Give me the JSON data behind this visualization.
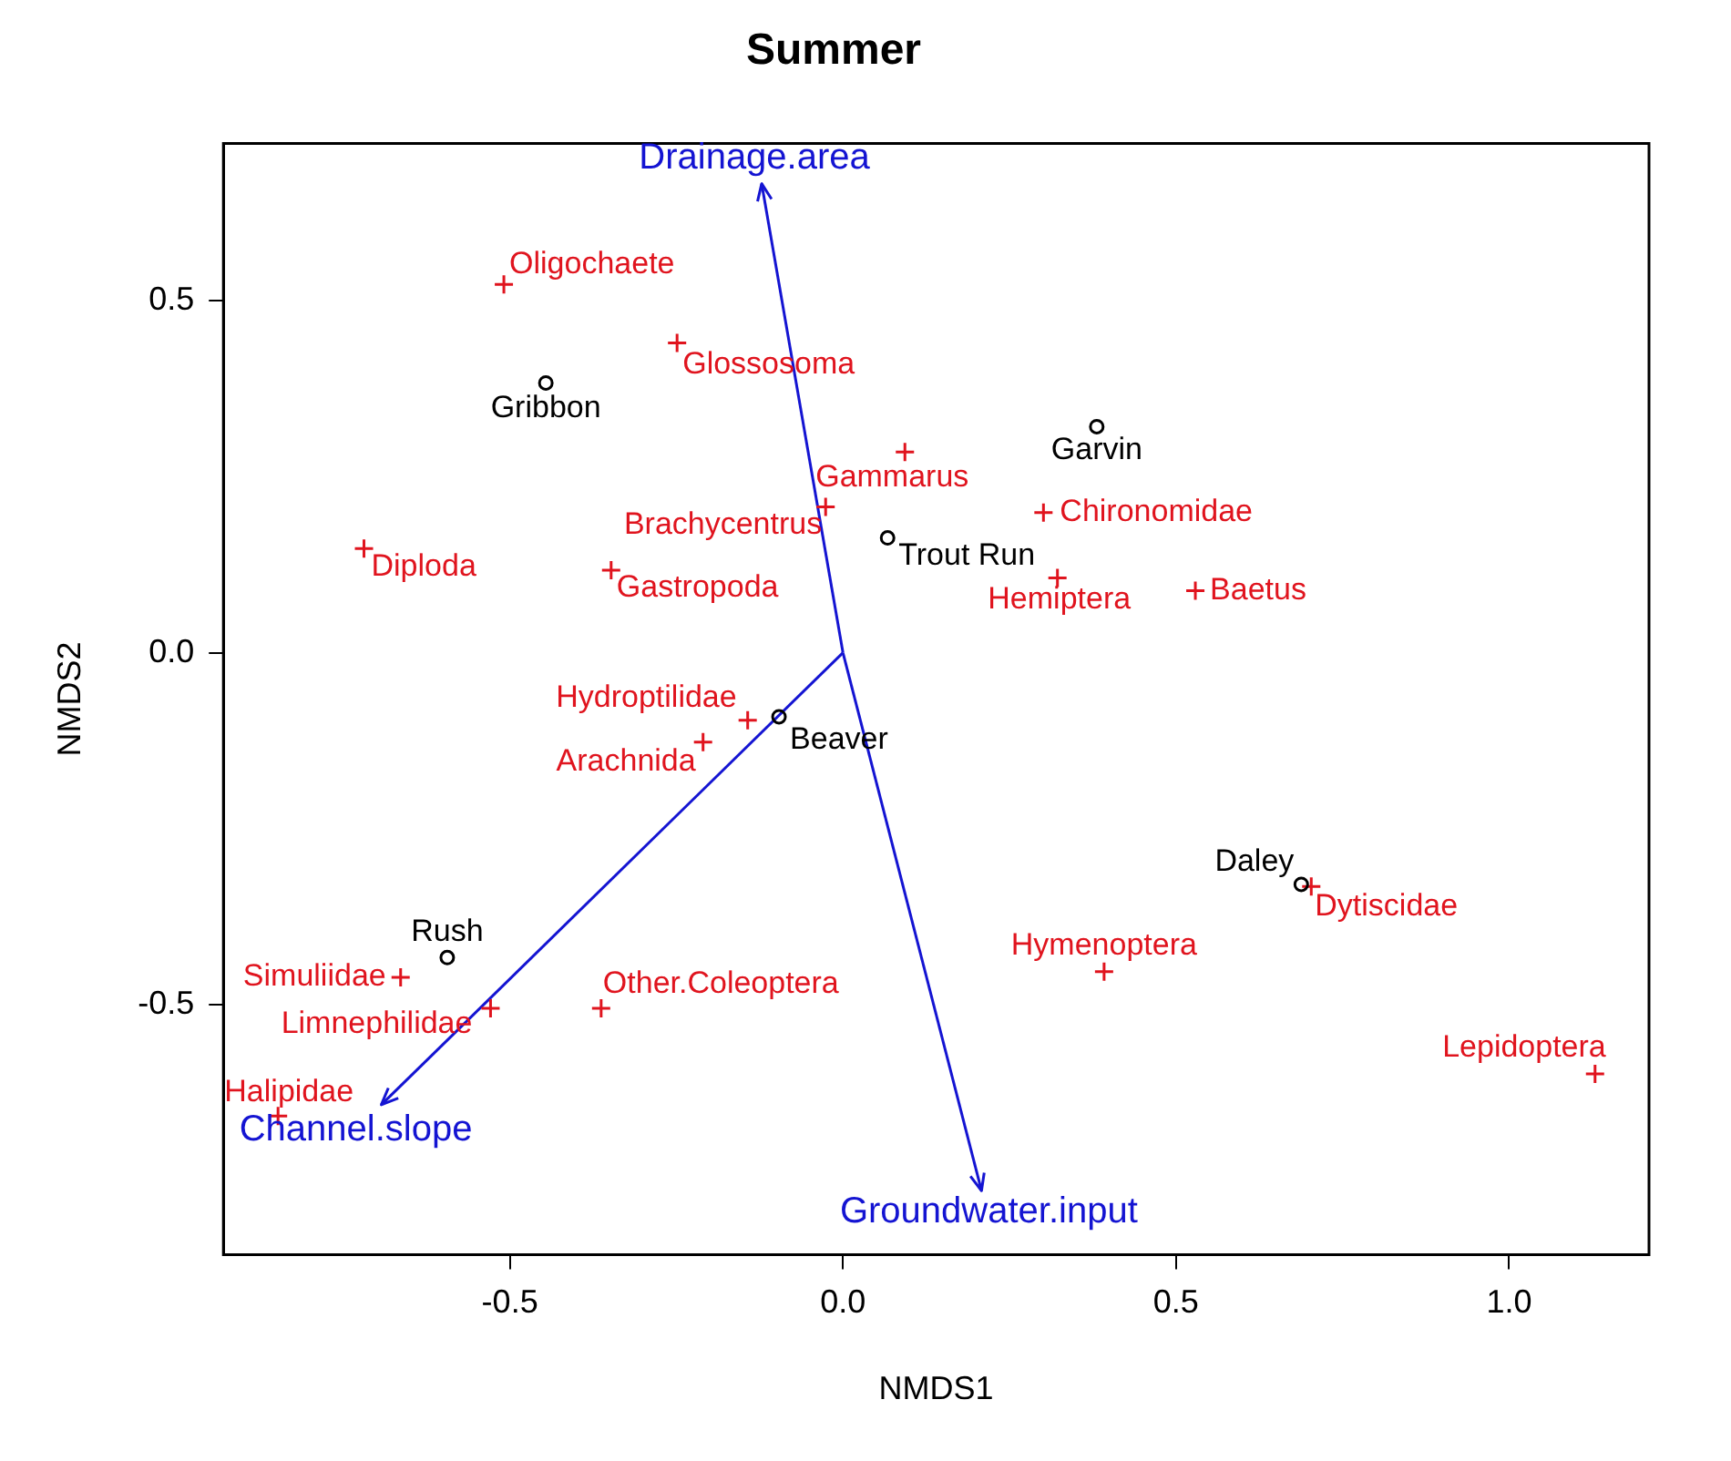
{
  "chart_data": {
    "type": "scatter",
    "title": "Summer",
    "xlabel": "NMDS1",
    "ylabel": "NMDS2",
    "xlim": [
      -0.93,
      1.21
    ],
    "ylim": [
      -0.855,
      0.723
    ],
    "xticks": [
      {
        "value": -0.5,
        "label": "-0.5"
      },
      {
        "value": 0,
        "label": "0.0"
      },
      {
        "value": 0.5,
        "label": "0.5"
      },
      {
        "value": 1,
        "label": "1.0"
      }
    ],
    "yticks": [
      {
        "value": -0.5,
        "label": "-0.5"
      },
      {
        "value": 0,
        "label": "0.0"
      },
      {
        "value": 0.5,
        "label": "0.5"
      }
    ],
    "series": [
      {
        "color": "#000000",
        "marker": "circle",
        "x": [
          -0.446,
          0.067,
          0.381,
          -0.096,
          -0.594,
          0.688
        ],
        "values": [
          0.383,
          0.163,
          0.321,
          -0.091,
          -0.433,
          -0.329
        ]
      },
      {
        "color": "#e0141e",
        "marker": "cross",
        "x": [
          -0.509,
          -0.249,
          0.093,
          -0.026,
          -0.719,
          -0.348,
          0.301,
          0.322,
          0.529,
          -0.143,
          -0.21,
          -0.664,
          -0.529,
          -0.363,
          -0.848,
          0.392,
          0.703,
          1.129
        ],
        "values": [
          0.523,
          0.44,
          0.285,
          0.207,
          0.148,
          0.117,
          0.199,
          0.106,
          0.088,
          -0.096,
          -0.127,
          -0.461,
          -0.505,
          -0.505,
          -0.658,
          -0.453,
          -0.332,
          -0.598
        ]
      },
      {
        "type": "line",
        "color": "#1414d2",
        "marker": "none",
        "x": [
          0,
          -0.122
        ],
        "values": [
          0,
          0.666
        ]
      },
      {
        "type": "line",
        "color": "#1414d2",
        "marker": "none",
        "x": [
          0,
          -0.693
        ],
        "values": [
          0,
          -0.642
        ]
      },
      {
        "type": "line",
        "color": "#1414d2",
        "marker": "none",
        "x": [
          0,
          0.208
        ],
        "values": [
          0,
          -0.764
        ]
      }
    ],
    "annotations": [
      {
        "text": "Gribbon",
        "x": -0.446,
        "y": 0.383
      },
      {
        "text": "Trout Run",
        "x": 0.067,
        "y": 0.163
      },
      {
        "text": "Garvin",
        "x": 0.381,
        "y": 0.321
      },
      {
        "text": "Beaver",
        "x": -0.096,
        "y": -0.091
      },
      {
        "text": "Rush",
        "x": -0.594,
        "y": -0.433
      },
      {
        "text": "Daley",
        "x": 0.688,
        "y": -0.329
      },
      {
        "text": "Oligochaete",
        "x": -0.509,
        "y": 0.523
      },
      {
        "text": "Glossosoma",
        "x": -0.249,
        "y": 0.44
      },
      {
        "text": "Gammarus",
        "x": 0.093,
        "y": 0.285
      },
      {
        "text": "Brachycentrus",
        "x": -0.026,
        "y": 0.207
      },
      {
        "text": "Diploda",
        "x": -0.719,
        "y": 0.148
      },
      {
        "text": "Gastropoda",
        "x": -0.348,
        "y": 0.117
      },
      {
        "text": "Chironomidae",
        "x": 0.301,
        "y": 0.199
      },
      {
        "text": "Hemiptera",
        "x": 0.322,
        "y": 0.106
      },
      {
        "text": "Baetus",
        "x": 0.529,
        "y": 0.088
      },
      {
        "text": "Hydroptilidae",
        "x": -0.143,
        "y": -0.096
      },
      {
        "text": "Arachnida",
        "x": -0.21,
        "y": -0.127
      },
      {
        "text": "Simuliidae",
        "x": -0.664,
        "y": -0.461
      },
      {
        "text": "Limnephilidae",
        "x": -0.529,
        "y": -0.505
      },
      {
        "text": "Other.Coleoptera",
        "x": -0.363,
        "y": -0.505
      },
      {
        "text": "Halipidae",
        "x": -0.848,
        "y": -0.658
      },
      {
        "text": "Hymenoptera",
        "x": 0.392,
        "y": -0.453
      },
      {
        "text": "Dytiscidae",
        "x": 0.703,
        "y": -0.332
      },
      {
        "text": "Lepidoptera",
        "x": 1.129,
        "y": -0.598
      },
      {
        "text": "Drainage.area",
        "x": -0.122,
        "y": 0.666
      },
      {
        "text": "Channel.slope",
        "x": -0.693,
        "y": -0.642
      },
      {
        "text": "Groundwater.input",
        "x": 0.208,
        "y": -0.764
      }
    ]
  }
}
